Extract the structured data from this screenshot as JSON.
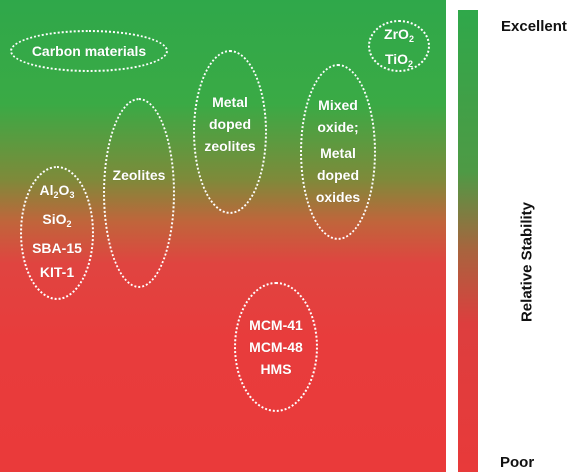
{
  "scale": {
    "top_label": "Excellent",
    "bottom_label": "Poor",
    "axis_label": "Relative Stability"
  },
  "groups": [
    {
      "id": "carbon",
      "lines": [
        "Carbon materials"
      ]
    },
    {
      "id": "zrti",
      "lines": [
        "ZrO",
        "2",
        "TiO",
        "2"
      ]
    },
    {
      "id": "metal-zeolites",
      "lines": [
        "Metal",
        "doped",
        "zeolites"
      ]
    },
    {
      "id": "mixed",
      "lines": [
        "Mixed",
        "oxide;",
        "Metal",
        "doped",
        "oxides"
      ]
    },
    {
      "id": "zeolites",
      "lines": [
        "Zeolites"
      ]
    },
    {
      "id": "alsio",
      "lines": [
        "Al",
        "2",
        "O",
        "3",
        "SiO",
        "2",
        "SBA-15",
        "KIT-1"
      ]
    },
    {
      "id": "mcm",
      "lines": [
        "MCM-41",
        "MCM-48",
        "HMS"
      ]
    }
  ]
}
